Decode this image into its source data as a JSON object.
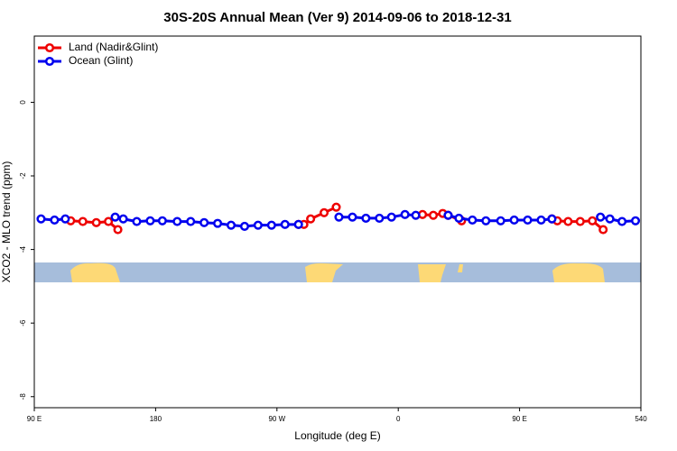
{
  "chart_data": {
    "type": "line",
    "title": "30S-20S Annual Mean (Ver 9)   2014-09-06 to 2018-12-31",
    "xlabel": "Longitude (deg E)",
    "ylabel": "XCO2 - MLO trend (ppm)",
    "xlim": [
      90,
      540
    ],
    "xticks": [
      {
        "value": 90,
        "label": "90 E"
      },
      180,
      {
        "value": 270,
        "label": "90 W"
      },
      {
        "value": 360,
        "label": "0"
      },
      {
        "value": 450,
        "label": "90 E"
      },
      540
    ],
    "ylim": [
      -8.3,
      1.8
    ],
    "yticks": [
      0,
      -2,
      -4,
      -6,
      -8
    ],
    "legend": "top-left",
    "series": [
      {
        "name": "Land (Nadir&Glint)",
        "color": "#ee0000",
        "x": [
          117,
          126,
          136,
          145,
          152,
          null,
          286,
          290,
          295,
          305,
          314,
          null,
          378,
          386,
          393,
          397,
          407,
          null,
          474,
          478,
          486,
          495,
          504,
          512
        ],
        "values": [
          -3.22,
          -3.24,
          -3.27,
          -3.24,
          -3.46,
          null,
          -3.32,
          -3.32,
          -3.17,
          -3.0,
          -2.85,
          null,
          -3.05,
          -3.07,
          -3.02,
          -3.07,
          -3.22,
          null,
          -3.17,
          -3.22,
          -3.24,
          -3.24,
          -3.22,
          -3.46
        ]
      },
      {
        "name": "Ocean (Glint)",
        "color": "#0000ee",
        "x": [
          95,
          105,
          113,
          null,
          150,
          156,
          166,
          176,
          185,
          196,
          206,
          216,
          226,
          236,
          246,
          256,
          266,
          276,
          286,
          null,
          316,
          326,
          336,
          346,
          355,
          365,
          373,
          null,
          397,
          405,
          415,
          425,
          436,
          446,
          456,
          466,
          474,
          null,
          510,
          517,
          526,
          536
        ],
        "values": [
          -3.17,
          -3.2,
          -3.17,
          null,
          -3.12,
          -3.17,
          -3.24,
          -3.22,
          -3.22,
          -3.24,
          -3.24,
          -3.27,
          -3.29,
          -3.34,
          -3.37,
          -3.34,
          -3.34,
          -3.32,
          -3.32,
          null,
          -3.12,
          -3.12,
          -3.15,
          -3.15,
          -3.12,
          -3.05,
          -3.07,
          null,
          -3.07,
          -3.15,
          -3.2,
          -3.22,
          -3.22,
          -3.2,
          -3.2,
          -3.2,
          -3.17,
          null,
          -3.12,
          -3.17,
          -3.24,
          -3.22
        ]
      }
    ]
  }
}
